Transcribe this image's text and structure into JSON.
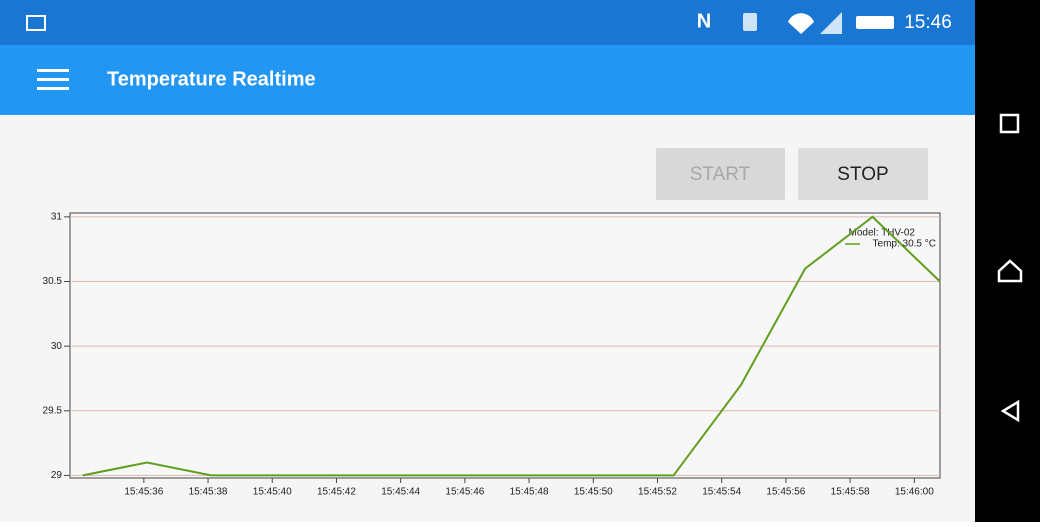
{
  "status_bar": {
    "time": "15:46"
  },
  "app_bar": {
    "title": "Temperature Realtime"
  },
  "buttons": {
    "start": "START",
    "stop": "STOP"
  },
  "chart_data": {
    "type": "line",
    "legend_title": "Model: THV-02",
    "x": [
      "15:45:34.1",
      "15:45:36.1",
      "15:45:38.1",
      "15:45:52.5",
      "15:45:54.6",
      "15:45:56.6",
      "15:45:58.7",
      "15:46:00.8"
    ],
    "series": [
      {
        "name": "Temp: 30.5 °C",
        "color": "#5f9f1f",
        "values": [
          29,
          29.1,
          29,
          29,
          29.7,
          30.6,
          31,
          30.5
        ]
      }
    ],
    "xlim": [
      "15:45:33.7",
      "15:46:00.8"
    ],
    "xticks": [
      "15:45:36",
      "15:45:38",
      "15:45:40",
      "15:45:42",
      "15:45:44",
      "15:45:46",
      "15:45:48",
      "15:45:50",
      "15:45:52",
      "15:45:54",
      "15:45:56",
      "15:45:58",
      "15:46:00"
    ],
    "ylim": [
      28.98,
      31.03
    ],
    "yticks": [
      29,
      29.5,
      30,
      30.5,
      31
    ],
    "grid": true,
    "legend": "upper right"
  }
}
